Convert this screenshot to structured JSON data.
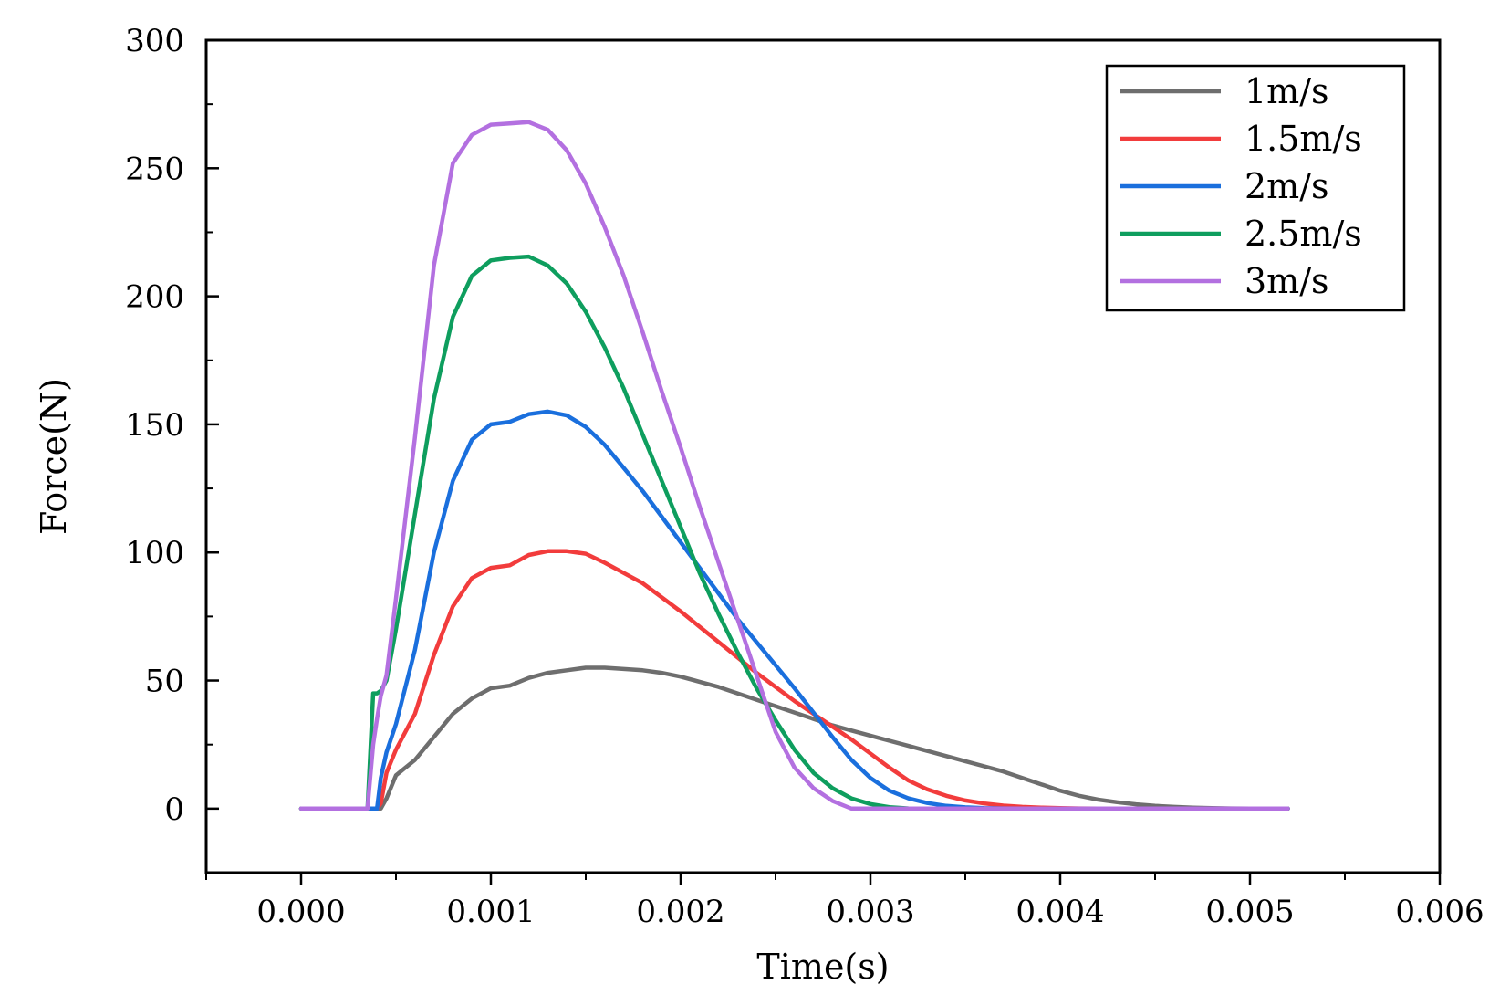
{
  "chart_data": {
    "type": "line",
    "title": "",
    "xlabel": "Time(s)",
    "ylabel": "Force(N)",
    "xlim": [
      -0.0005,
      0.006
    ],
    "ylim": [
      -25,
      300
    ],
    "xticks": [
      0.0,
      0.001,
      0.002,
      0.003,
      0.004,
      0.005,
      0.006
    ],
    "xtick_labels": [
      "0.000",
      "0.001",
      "0.002",
      "0.003",
      "0.004",
      "0.005",
      "0.006"
    ],
    "yticks": [
      0,
      50,
      100,
      150,
      200,
      250,
      300
    ],
    "ytick_labels": [
      "0",
      "50",
      "100",
      "150",
      "200",
      "250",
      "300"
    ],
    "grid": false,
    "legend_position": "top-right",
    "series": [
      {
        "name": "1m/s",
        "color": "#6e6e6e",
        "x": [
          0,
          0.00035,
          0.0004,
          0.00042,
          0.00045,
          0.0005,
          0.0006,
          0.0007,
          0.0008,
          0.0009,
          0.001,
          0.0011,
          0.0012,
          0.0013,
          0.0014,
          0.0015,
          0.0016,
          0.0017,
          0.0018,
          0.0019,
          0.002,
          0.0021,
          0.0022,
          0.0023,
          0.0024,
          0.0025,
          0.0026,
          0.0027,
          0.0028,
          0.0029,
          0.003,
          0.0031,
          0.0032,
          0.0033,
          0.0034,
          0.0035,
          0.0036,
          0.0037,
          0.0038,
          0.0039,
          0.004,
          0.0041,
          0.0042,
          0.0043,
          0.0044,
          0.0045,
          0.0046,
          0.0047,
          0.0048,
          0.0049,
          0.005,
          0.0051,
          0.0052
        ],
        "y": [
          0,
          0,
          0,
          0,
          4,
          13,
          19,
          28,
          37,
          43,
          47,
          48,
          51,
          53,
          54,
          55,
          55,
          54.5,
          54,
          53,
          51.5,
          49.5,
          47.5,
          45,
          42.5,
          40,
          37.5,
          35,
          32.5,
          30.5,
          28.5,
          26.5,
          24.5,
          22.5,
          20.5,
          18.5,
          16.5,
          14.5,
          12,
          9.5,
          7,
          5,
          3.5,
          2.5,
          1.7,
          1.1,
          0.7,
          0.4,
          0.2,
          0.1,
          0.05,
          0,
          0
        ]
      },
      {
        "name": "1.5m/s",
        "color": "#f23c3c",
        "x": [
          0,
          0.00035,
          0.0004,
          0.00042,
          0.00045,
          0.0005,
          0.0006,
          0.0007,
          0.0008,
          0.0009,
          0.001,
          0.0011,
          0.0012,
          0.0013,
          0.0014,
          0.0015,
          0.0016,
          0.0017,
          0.0018,
          0.0019,
          0.002,
          0.0021,
          0.0022,
          0.0023,
          0.0024,
          0.0025,
          0.0026,
          0.0027,
          0.0028,
          0.0029,
          0.003,
          0.0031,
          0.0032,
          0.0033,
          0.0034,
          0.0035,
          0.0036,
          0.0037,
          0.0038,
          0.0039,
          0.004,
          0.0041,
          0.0042,
          0.0043,
          0.0044,
          0.0045,
          0.005,
          0.0052
        ],
        "y": [
          0,
          0,
          0,
          2,
          14,
          23,
          37,
          60,
          79,
          90,
          94,
          95,
          99,
          100.5,
          100.5,
          99.5,
          96,
          92,
          88,
          82.5,
          77,
          71,
          65,
          59,
          53,
          47.5,
          42,
          37,
          32,
          27,
          21.5,
          16,
          11,
          7.5,
          5,
          3.2,
          2,
          1.2,
          0.7,
          0.4,
          0.2,
          0.1,
          0,
          0,
          0,
          0,
          0,
          0
        ]
      },
      {
        "name": "2m/s",
        "color": "#1a6fdd",
        "x": [
          0,
          0.00035,
          0.0004,
          0.00042,
          0.00045,
          0.0005,
          0.0006,
          0.0007,
          0.0008,
          0.0009,
          0.001,
          0.0011,
          0.0012,
          0.0013,
          0.0014,
          0.0015,
          0.0016,
          0.0017,
          0.0018,
          0.0019,
          0.002,
          0.0021,
          0.0022,
          0.0023,
          0.0024,
          0.0025,
          0.0026,
          0.0027,
          0.0028,
          0.0029,
          0.003,
          0.0031,
          0.0032,
          0.0033,
          0.0034,
          0.0035,
          0.0036,
          0.0037,
          0.0038,
          0.0039,
          0.004,
          0.0045,
          0.005,
          0.0052
        ],
        "y": [
          0,
          0,
          0,
          12,
          22,
          33,
          62,
          100,
          128,
          144,
          150,
          151,
          154,
          155,
          153.5,
          149,
          142,
          133,
          124,
          114,
          104,
          94,
          84,
          74,
          65,
          56,
          47,
          37.5,
          28,
          19,
          12,
          7,
          4,
          2.2,
          1.1,
          0.5,
          0.2,
          0.1,
          0,
          0,
          0,
          0,
          0,
          0
        ]
      },
      {
        "name": "2.5m/s",
        "color": "#0e9e5e",
        "x": [
          0,
          0.00035,
          0.00038,
          0.0004,
          0.00042,
          0.00045,
          0.0005,
          0.0006,
          0.0007,
          0.0008,
          0.0009,
          0.001,
          0.0011,
          0.0012,
          0.0013,
          0.0014,
          0.0015,
          0.0016,
          0.0017,
          0.0018,
          0.0019,
          0.002,
          0.0021,
          0.0022,
          0.0023,
          0.0024,
          0.0025,
          0.0026,
          0.0027,
          0.0028,
          0.0029,
          0.003,
          0.0031,
          0.0032,
          0.0033,
          0.0034,
          0.0035,
          0.004,
          0.0045,
          0.005,
          0.0052
        ],
        "y": [
          0,
          0,
          45,
          45,
          46,
          50,
          70,
          115,
          160,
          192,
          208,
          214,
          215,
          215.5,
          212,
          205,
          194,
          180,
          164,
          146,
          128,
          110,
          92,
          76,
          61,
          47,
          34.5,
          23,
          14,
          8,
          4,
          1.8,
          0.6,
          0.1,
          0,
          0,
          0,
          0,
          0,
          0,
          0
        ]
      },
      {
        "name": "3m/s",
        "color": "#b370e0",
        "x": [
          0,
          0.00035,
          0.00038,
          0.0004,
          0.00042,
          0.00045,
          0.0005,
          0.0006,
          0.0007,
          0.0008,
          0.0009,
          0.001,
          0.0011,
          0.0012,
          0.0013,
          0.0014,
          0.0015,
          0.0016,
          0.0017,
          0.0018,
          0.0019,
          0.002,
          0.0021,
          0.0022,
          0.0023,
          0.0024,
          0.0025,
          0.0026,
          0.0027,
          0.0028,
          0.0029,
          0.003,
          0.0035,
          0.004,
          0.0045,
          0.005,
          0.0052
        ],
        "y": [
          0,
          0,
          25,
          35,
          44,
          52,
          82,
          145,
          212,
          252,
          263,
          267,
          267.5,
          268,
          265,
          257,
          244,
          227,
          208,
          186,
          163,
          141,
          118,
          96,
          74,
          52,
          30,
          16,
          8,
          3,
          0,
          0,
          0,
          0,
          0,
          0,
          0
        ]
      }
    ]
  }
}
